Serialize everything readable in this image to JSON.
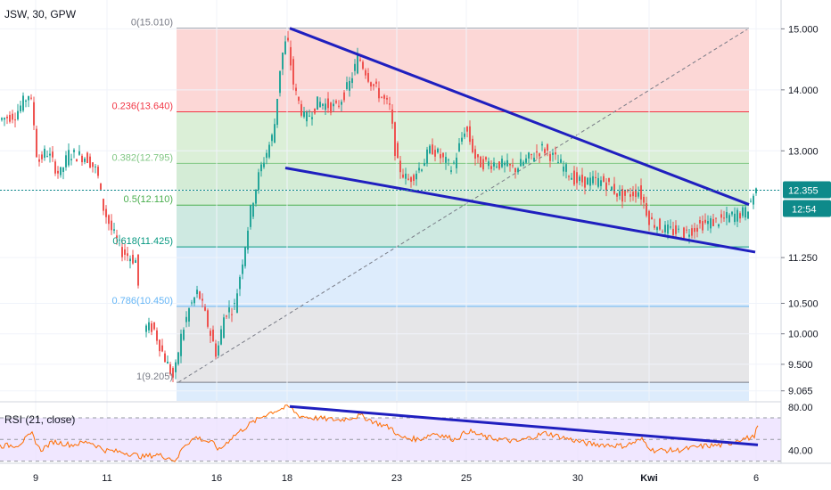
{
  "header": {
    "symbol": "JSW, 30, GPW"
  },
  "colors": {
    "candle_up": "#26a69a",
    "candle_down": "#ef5350",
    "trendline": "#1f1fbf",
    "rsi_line": "#ff6d00",
    "rsi_band": "#e9ddff",
    "last_price": "#0e8a8a"
  },
  "chart_data": [
    {
      "type": "candlestick",
      "title": "JSW, 30, GPW",
      "ylim": [
        8.9,
        15.4
      ],
      "y_ticks": [
        "15.000",
        "14.000",
        "13.000",
        "11.250",
        "10.500",
        "10.000",
        "9.500",
        "9.065"
      ],
      "x_ticks": [
        "9",
        "11",
        "16",
        "18",
        "23",
        "25",
        "30",
        "Kwi",
        "6"
      ],
      "last_price": {
        "value": "12.355",
        "countdown": "12:54"
      },
      "fibonacci_levels": [
        {
          "label": "0(15.010)",
          "ratio": 0,
          "price": 15.01,
          "color": "#787b86",
          "band": "#fbd0cf"
        },
        {
          "label": "0.236(13.640)",
          "ratio": 0.236,
          "price": 13.64,
          "color": "#f23645",
          "band": "#d5ecd0"
        },
        {
          "label": "0.382(12.795)",
          "ratio": 0.382,
          "price": 12.795,
          "color": "#81c784",
          "band": "#cde9cf"
        },
        {
          "label": "0.5(12.110)",
          "ratio": 0.5,
          "price": 12.11,
          "color": "#4caf50",
          "band": "#c5e5dc"
        },
        {
          "label": "0.618(11.425)",
          "ratio": 0.618,
          "price": 11.425,
          "color": "#089981",
          "band": "#d7e9fb"
        },
        {
          "label": "0.786(10.450)",
          "ratio": 0.786,
          "price": 10.45,
          "color": "#64b5f6",
          "band": "#e2e2e4"
        },
        {
          "label": "1(9.205)",
          "ratio": 1,
          "price": 9.205,
          "color": "#787b86",
          "band": "#d7e9fb"
        }
      ],
      "trendlines": [
        {
          "name": "upper",
          "from": [
            325,
            15.01
          ],
          "to": [
            840,
            12.12
          ]
        },
        {
          "name": "lower",
          "from": [
            320,
            12.72
          ],
          "to": [
            847,
            11.34
          ]
        }
      ],
      "series": [
        {
          "name": "price_path",
          "points": [
            [
              0,
              13.5
            ],
            [
              20,
              13.6
            ],
            [
              36,
              13.95
            ],
            [
              40,
              13.6
            ],
            [
              45,
              12.8
            ],
            [
              55,
              13.0
            ],
            [
              70,
              12.6
            ],
            [
              80,
              12.95
            ],
            [
              100,
              12.9
            ],
            [
              112,
              12.65
            ],
            [
              118,
              12.1
            ],
            [
              128,
              11.7
            ],
            [
              140,
              11.35
            ],
            [
              155,
              11.2
            ],
            [
              163,
              10.1
            ],
            [
              175,
              10.1
            ],
            [
              185,
              9.7
            ],
            [
              198,
              9.25
            ],
            [
              205,
              9.9
            ],
            [
              215,
              10.4
            ],
            [
              225,
              10.7
            ],
            [
              238,
              10.05
            ],
            [
              246,
              9.65
            ],
            [
              255,
              10.35
            ],
            [
              266,
              10.45
            ],
            [
              276,
              11.3
            ],
            [
              285,
              12.1
            ],
            [
              295,
              12.7
            ],
            [
              310,
              13.3
            ],
            [
              318,
              14.5
            ],
            [
              325,
              14.85
            ],
            [
              333,
              14.0
            ],
            [
              345,
              13.5
            ],
            [
              360,
              13.8
            ],
            [
              380,
              13.7
            ],
            [
              395,
              14.1
            ],
            [
              405,
              14.55
            ],
            [
              420,
              14.1
            ],
            [
              440,
              13.7
            ],
            [
              448,
              12.8
            ],
            [
              460,
              12.5
            ],
            [
              475,
              12.75
            ],
            [
              487,
              13.05
            ],
            [
              510,
              12.7
            ],
            [
              525,
              13.4
            ],
            [
              538,
              12.8
            ],
            [
              560,
              12.8
            ],
            [
              580,
              12.7
            ],
            [
              612,
              13.05
            ],
            [
              630,
              12.8
            ],
            [
              650,
              12.5
            ],
            [
              680,
              12.5
            ],
            [
              700,
              12.25
            ],
            [
              720,
              12.35
            ],
            [
              732,
              11.85
            ],
            [
              750,
              11.7
            ],
            [
              770,
              11.65
            ],
            [
              790,
              11.8
            ],
            [
              808,
              11.85
            ],
            [
              828,
              11.95
            ],
            [
              840,
              12.0
            ],
            [
              850,
              12.35
            ]
          ]
        }
      ]
    },
    {
      "type": "line",
      "title": "RSI (21, close)",
      "ylim": [
        28,
        84
      ],
      "y_ticks": [
        "80.00",
        "40.00"
      ],
      "band": [
        30,
        70
      ],
      "trendline": {
        "from": [
          325,
          80.5
        ],
        "to": [
          850,
          45
        ]
      },
      "series": [
        {
          "name": "rsi",
          "values": [
            [
              0,
              44
            ],
            [
              20,
              45
            ],
            [
              36,
              55
            ],
            [
              45,
              40
            ],
            [
              60,
              48
            ],
            [
              80,
              45
            ],
            [
              100,
              48
            ],
            [
              118,
              40
            ],
            [
              140,
              38
            ],
            [
              160,
              34
            ],
            [
              176,
              36
            ],
            [
              190,
              33
            ],
            [
              198,
              30
            ],
            [
              205,
              44
            ],
            [
              220,
              52
            ],
            [
              240,
              46
            ],
            [
              246,
              40
            ],
            [
              260,
              52
            ],
            [
              280,
              64
            ],
            [
              300,
              74
            ],
            [
              318,
              79
            ],
            [
              325,
              80
            ],
            [
              335,
              72
            ],
            [
              350,
              70
            ],
            [
              380,
              68
            ],
            [
              405,
              72
            ],
            [
              420,
              66
            ],
            [
              440,
              60
            ],
            [
              448,
              52
            ],
            [
              470,
              50
            ],
            [
              487,
              56
            ],
            [
              510,
              50
            ],
            [
              525,
              58
            ],
            [
              545,
              52
            ],
            [
              580,
              48
            ],
            [
              612,
              56
            ],
            [
              640,
              50
            ],
            [
              660,
              46
            ],
            [
              700,
              44
            ],
            [
              720,
              50
            ],
            [
              732,
              40
            ],
            [
              760,
              40
            ],
            [
              790,
              44
            ],
            [
              815,
              45
            ],
            [
              828,
              50
            ],
            [
              845,
              52
            ],
            [
              850,
              62
            ]
          ]
        }
      ]
    }
  ]
}
